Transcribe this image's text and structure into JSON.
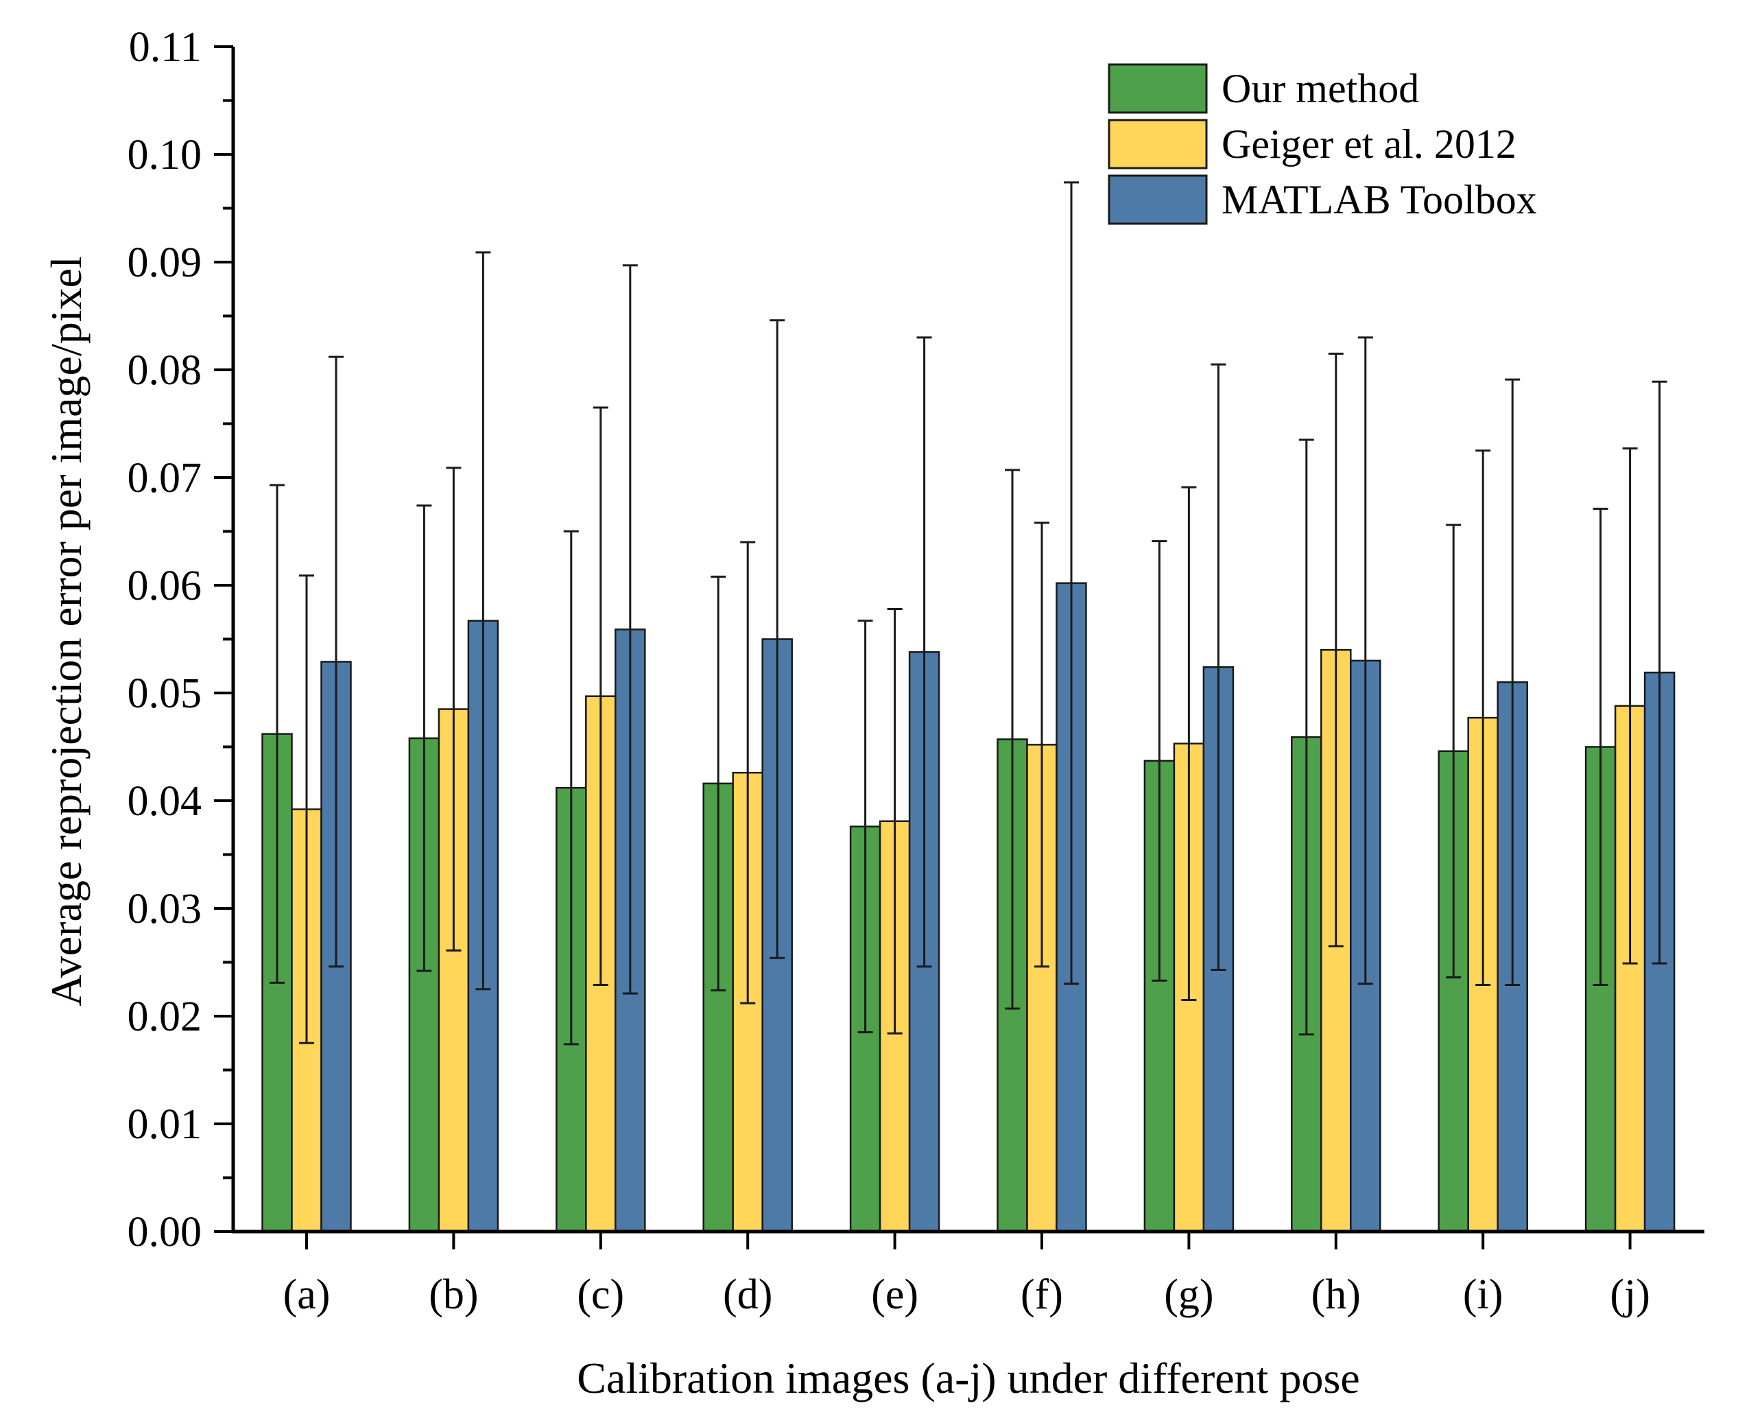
{
  "chart_data": {
    "type": "bar",
    "title": "",
    "xlabel": "Calibration images (a-j) under different pose",
    "ylabel": "Average reprojection error per image/pixel",
    "ylim": [
      0,
      0.11
    ],
    "yticks": [
      "0.00",
      "0.01",
      "0.02",
      "0.03",
      "0.04",
      "0.05",
      "0.06",
      "0.07",
      "0.08",
      "0.09",
      "0.10",
      "0.11"
    ],
    "ytick_values": [
      0,
      0.01,
      0.02,
      0.03,
      0.04,
      0.05,
      0.06,
      0.07,
      0.08,
      0.09,
      0.1,
      0.11
    ],
    "categories": [
      "(a)",
      "(b)",
      "(c)",
      "(d)",
      "(e)",
      "(f)",
      "(g)",
      "(h)",
      "(i)",
      "(j)"
    ],
    "legend_position": "top-right",
    "grid": false,
    "series": [
      {
        "name": "Our method",
        "color": "#4ea04a",
        "values": [
          0.0462,
          0.0458,
          0.0412,
          0.0416,
          0.0376,
          0.0457,
          0.0437,
          0.0459,
          0.0446,
          0.045
        ],
        "error": [
          0.0231,
          0.0216,
          0.0238,
          0.0192,
          0.0191,
          0.025,
          0.0204,
          0.0276,
          0.021,
          0.0221
        ]
      },
      {
        "name": "Geiger et al. 2012",
        "color": "#ffd55a",
        "values": [
          0.0392,
          0.0485,
          0.0497,
          0.0426,
          0.0381,
          0.0452,
          0.0453,
          0.054,
          0.0477,
          0.0488
        ],
        "error": [
          0.0217,
          0.0224,
          0.0268,
          0.0214,
          0.0197,
          0.0206,
          0.0238,
          0.0275,
          0.0248,
          0.0239
        ]
      },
      {
        "name": "MATLAB Toolbox",
        "color": "#4e7aa8",
        "values": [
          0.0529,
          0.0567,
          0.0559,
          0.055,
          0.0538,
          0.0602,
          0.0524,
          0.053,
          0.051,
          0.0519
        ],
        "error": [
          0.0283,
          0.0342,
          0.0338,
          0.0296,
          0.0292,
          0.0372,
          0.0281,
          0.03,
          0.0281,
          0.027
        ]
      }
    ]
  }
}
